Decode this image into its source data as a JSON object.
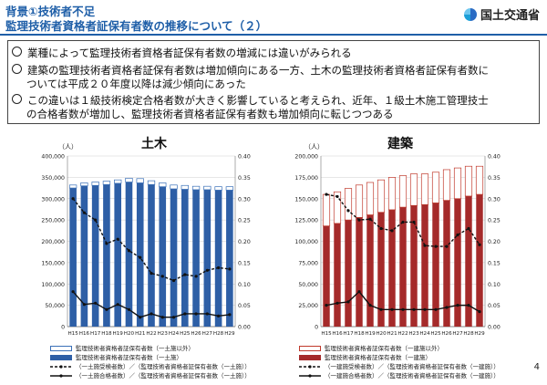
{
  "header": {
    "line1": "背景①技術者不足",
    "line2": "監理技術者資格者証保有者数の推移について（２）",
    "org": "国土交通省"
  },
  "bullets": [
    {
      "id": "b1",
      "lines": [
        "業種によって監理技術者資格者証保有者数の増減には違いがみられる"
      ]
    },
    {
      "id": "b2",
      "lines": [
        "建築の監理技術者資格者証保有者数は増加傾向にある一方、土木の監理技術者資格者証保有者数に",
        "ついては平成２０年度以降は減少傾向にあった"
      ]
    },
    {
      "id": "b3",
      "lines": [
        "この違いは１級技術検定合格者数が大きく影響していると考えられ、近年、１級土木施工管理技士",
        "の合格者数が増加し、監理技術者資格者証保有者数も増加傾向に転じつつある"
      ]
    }
  ],
  "page_number": "4",
  "chart_data": [
    {
      "id": "doboku",
      "type": "bar",
      "title": "土木",
      "unit_label": "（人）",
      "categories": [
        "H15",
        "H16",
        "H17",
        "H18",
        "H19",
        "H20",
        "H21",
        "H22",
        "H23",
        "H24",
        "H25",
        "H26",
        "H27",
        "H28",
        "H29"
      ],
      "ylim": [
        0,
        400000
      ],
      "y_ticks": [
        "0",
        "50,000",
        "100,000",
        "150,000",
        "200,000",
        "250,000",
        "300,000",
        "350,000",
        "400,000"
      ],
      "y2lim": [
        0,
        0.4
      ],
      "y2_ticks": [
        "0.00",
        "0.05",
        "0.10",
        "0.15",
        "0.20",
        "0.25",
        "0.30",
        "0.35",
        "0.40"
      ],
      "series": [
        {
          "name": "監理技術者資格者証保有者数（一土施以外）",
          "kind": "bar-stack-top",
          "color": "#ffffff",
          "stroke": "#3a70b8",
          "values": [
            7000,
            7000,
            8000,
            8000,
            8000,
            9000,
            10000,
            9000,
            9000,
            9000,
            9000,
            8000,
            8000,
            8000,
            8000
          ]
        },
        {
          "name": "監理技術者資格者証保有者数（一土施）",
          "kind": "bar",
          "color": "#2e5fa6",
          "values": [
            325000,
            330000,
            331000,
            333000,
            336000,
            339000,
            337000,
            333000,
            328000,
            323000,
            322000,
            321000,
            321000,
            320000,
            320000
          ]
        },
        {
          "name": "（一土施受検者数）／（監理技術者資格者証保有者数（一土施））",
          "kind": "line-dashed",
          "color": "#111111",
          "values": [
            0.3,
            0.267,
            0.25,
            0.195,
            0.205,
            0.178,
            0.162,
            0.125,
            0.118,
            0.108,
            0.122,
            0.118,
            0.132,
            0.138,
            0.135
          ]
        },
        {
          "name": "（一土施合格者数）／（監理技術者資格者証保有者数（一土施））",
          "kind": "line",
          "color": "#111111",
          "values": [
            0.082,
            0.052,
            0.055,
            0.04,
            0.052,
            0.04,
            0.022,
            0.03,
            0.022,
            0.022,
            0.03,
            0.03,
            0.03,
            0.025,
            0.028
          ]
        }
      ],
      "legend": [
        "監理技術者資格者証保有者数（一土施以外）",
        "監理技術者資格者証保有者数（一土施）",
        "（一土施受検者数）／（監理技術者資格者証保有者数（一土施））",
        "（一土施合格者数）／（監理技術者資格者証保有者数（一土施））"
      ]
    },
    {
      "id": "kenchiku",
      "type": "bar",
      "title": "建築",
      "unit_label": "（人）",
      "categories": [
        "H15",
        "H16",
        "H17",
        "H18",
        "H19",
        "H20",
        "H21",
        "H22",
        "H23",
        "H24",
        "H25",
        "H26",
        "H27",
        "H28",
        "H29"
      ],
      "ylim": [
        0,
        200000
      ],
      "y_ticks": [
        "0",
        "25,000",
        "50,000",
        "75,000",
        "100,000",
        "125,000",
        "150,000",
        "175,000",
        "200,000"
      ],
      "y2lim": [
        0,
        0.4
      ],
      "y2_ticks": [
        "0.00",
        "0.05",
        "0.10",
        "0.15",
        "0.20",
        "0.25",
        "0.30",
        "0.35",
        "0.40"
      ],
      "series": [
        {
          "name": "監理技術者資格者証保有者数（一建施以外）",
          "kind": "bar-stack-top",
          "color": "#ffffff",
          "stroke": "#c0392b",
          "values": [
            37000,
            37000,
            37000,
            38000,
            38000,
            38000,
            38000,
            37000,
            37000,
            36000,
            36000,
            36000,
            36000,
            35000,
            33000
          ]
        },
        {
          "name": "監理技術者資格者証保有者数（一建施）",
          "kind": "bar",
          "color": "#a52a2a",
          "values": [
            118000,
            121000,
            125000,
            128000,
            131000,
            134000,
            137000,
            140000,
            142000,
            143000,
            145000,
            148000,
            150000,
            153000,
            155000
          ]
        },
        {
          "name": "（一建施受検者数）／（監理技術者資格者証保有者数（一建施））",
          "kind": "line-dashed",
          "color": "#111111",
          "values": [
            0.31,
            0.305,
            0.272,
            0.25,
            0.252,
            0.23,
            0.225,
            0.245,
            0.245,
            0.19,
            0.188,
            0.188,
            0.215,
            0.23,
            0.192
          ]
        },
        {
          "name": "（一建施合格者数）／（監理技術者資格者証保有者数（一建施））",
          "kind": "line",
          "color": "#111111",
          "values": [
            0.05,
            0.055,
            0.058,
            0.082,
            0.05,
            0.04,
            0.04,
            0.04,
            0.04,
            0.04,
            0.04,
            0.045,
            0.05,
            0.05,
            0.035
          ]
        }
      ],
      "legend": [
        "監理技術者資格者証保有者数（一建施以外）",
        "監理技術者資格者証保有者数（一建施）",
        "（一建施受検者数）／（監理技術者資格者証保有者数（一建施））",
        "（一建施合格者数）／（監理技術者資格者証保有者数（一建施））"
      ]
    }
  ]
}
